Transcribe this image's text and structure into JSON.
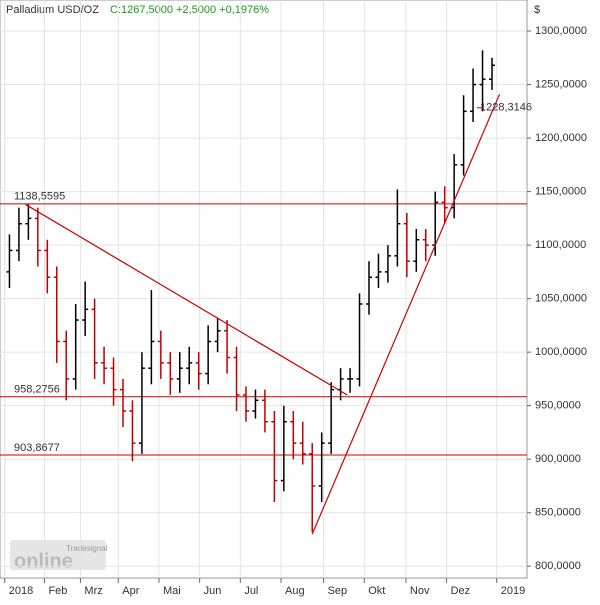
{
  "chart_data": {
    "type": "ohlc",
    "title": "Palladium USD/OZ",
    "quote": "C:1267,5000 +2,5000 +0,1976%",
    "currency": "$",
    "logo": {
      "brand": "Tradesignal",
      "word": "online"
    },
    "x": [
      0.5,
      1.5,
      2.5,
      3.5,
      4.5,
      5.5,
      6.5,
      7.5,
      8.5,
      9.5,
      10.5,
      11.5,
      12.5,
      13.5,
      14.5,
      15.5,
      16.5,
      17.5,
      18.5,
      19.5,
      20.5,
      21.5,
      22.5,
      23.5,
      24.5,
      25.5,
      26.5,
      27.5,
      28.5,
      29.5,
      30.5,
      31.5,
      32.5,
      33.5,
      34.5,
      35.5,
      36.5,
      37.5,
      38.5,
      39.5,
      40.5,
      41.5,
      42.5,
      43.5,
      44.5,
      45.5,
      46.5,
      47.5,
      48.5,
      49.5,
      50.5,
      51.5
    ],
    "open": [
      1075,
      1095,
      1120,
      1125,
      1095,
      1070,
      1010,
      975,
      1030,
      1040,
      990,
      985,
      965,
      945,
      915,
      985,
      1010,
      990,
      975,
      985,
      990,
      980,
      1010,
      1020,
      995,
      960,
      945,
      955,
      935,
      880,
      935,
      915,
      905,
      875,
      915,
      965,
      975,
      975,
      1045,
      1070,
      1075,
      1090,
      1120,
      1085,
      1105,
      1100,
      1140,
      1135,
      1175,
      1225,
      1250,
      1255
    ],
    "high": [
      1110,
      1135,
      1138,
      1135,
      1105,
      1080,
      1020,
      1045,
      1066,
      1050,
      1005,
      995,
      975,
      955,
      1000,
      1058,
      1020,
      1000,
      1000,
      1005,
      1000,
      1025,
      1032,
      1030,
      1005,
      968,
      965,
      965,
      945,
      950,
      945,
      935,
      915,
      925,
      972,
      985,
      985,
      1055,
      1085,
      1092,
      1100,
      1152,
      1130,
      1115,
      1115,
      1150,
      1155,
      1185,
      1240,
      1265,
      1282,
      1275
    ],
    "low": [
      1060,
      1085,
      1105,
      1080,
      1055,
      990,
      955,
      965,
      1015,
      975,
      970,
      950,
      930,
      898,
      905,
      970,
      975,
      960,
      962,
      970,
      965,
      970,
      1000,
      980,
      945,
      935,
      938,
      925,
      860,
      870,
      900,
      895,
      832,
      860,
      905,
      955,
      962,
      968,
      1035,
      1060,
      1065,
      1080,
      1070,
      1075,
      1085,
      1090,
      1120,
      1125,
      1165,
      1215,
      1225,
      1245
    ],
    "close": [
      1095,
      1120,
      1125,
      1095,
      1070,
      1010,
      975,
      1030,
      1040,
      990,
      985,
      965,
      945,
      915,
      985,
      1010,
      990,
      975,
      985,
      990,
      980,
      1010,
      1020,
      995,
      960,
      945,
      955,
      935,
      880,
      935,
      915,
      905,
      875,
      915,
      965,
      975,
      975,
      1045,
      1070,
      1075,
      1090,
      1120,
      1085,
      1105,
      1100,
      1140,
      1135,
      1175,
      1225,
      1250,
      1255,
      1268
    ],
    "color": "#000000",
    "up_color": "#000000",
    "down_color": "#c00000",
    "xlim": [
      -0.5,
      55.2
    ],
    "xticks": [
      {
        "value": 0,
        "label": "2018"
      },
      {
        "value": 4.2,
        "label": "Feb"
      },
      {
        "value": 8.0,
        "label": "Mrz"
      },
      {
        "value": 12.0,
        "label": "Apr"
      },
      {
        "value": 16.3,
        "label": "Mai"
      },
      {
        "value": 20.6,
        "label": "Jun"
      },
      {
        "value": 24.9,
        "label": "Jul"
      },
      {
        "value": 29.2,
        "label": "Aug"
      },
      {
        "value": 33.7,
        "label": "Sep"
      },
      {
        "value": 38.0,
        "label": "Okt"
      },
      {
        "value": 42.4,
        "label": "Nov"
      },
      {
        "value": 46.7,
        "label": "Dez"
      },
      {
        "value": 52.0,
        "label": "2019"
      }
    ],
    "ylim": [
      789,
      1329
    ],
    "yticks": [
      {
        "value": 800,
        "label": "800,0000"
      },
      {
        "value": 850,
        "label": "850,0000"
      },
      {
        "value": 900,
        "label": "900,0000"
      },
      {
        "value": 950,
        "label": "950,0000"
      },
      {
        "value": 1000,
        "label": "1000,0000"
      },
      {
        "value": 1050,
        "label": "1050,0000"
      },
      {
        "value": 1100,
        "label": "1100,0000"
      },
      {
        "value": 1150,
        "label": "1150,0000"
      },
      {
        "value": 1200,
        "label": "1200,0000"
      },
      {
        "value": 1250,
        "label": "1250,0000"
      },
      {
        "value": 1300,
        "label": "1300,0000"
      }
    ],
    "grid": true,
    "levels": [
      {
        "value": 1138.5595,
        "label": "1138,5595"
      },
      {
        "value": 958.2756,
        "label": "958,2756"
      },
      {
        "value": 903.8677,
        "label": "903,8677"
      }
    ],
    "level_color": "#cc0000",
    "trendlines": [
      {
        "x": [
          2.2,
          36.2
        ],
        "y": [
          1138,
          960
        ]
      },
      {
        "x": [
          32.5,
          52.3
        ],
        "y": [
          830,
          1241
        ],
        "mark": {
          "value": 1228.3146,
          "label": "1228,3146"
        }
      }
    ]
  }
}
